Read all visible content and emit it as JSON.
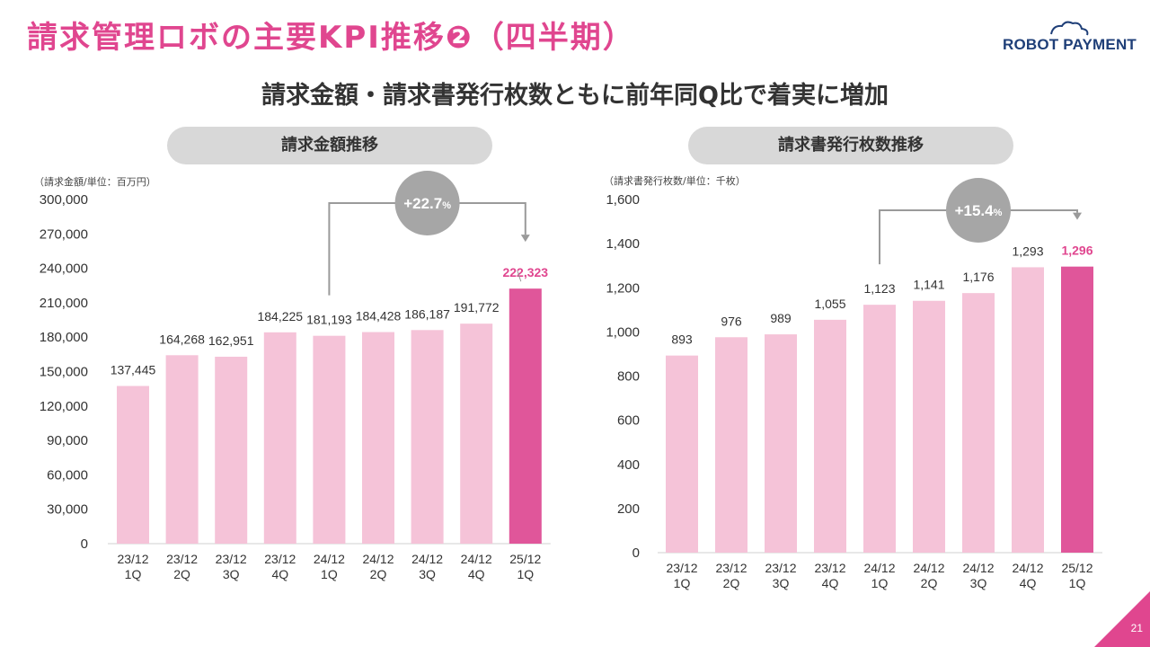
{
  "header": {
    "title": "請求管理ロボの主要KPI推移❷（四半期）",
    "logo_text": "ROBOT PAYMENT",
    "subtitle": "請求金額・請求書発行枚数ともに前年同Q比で着実に増加"
  },
  "page_number": "21",
  "colors": {
    "accent": "#e0468f",
    "bar_light": "#f5c3d8",
    "bar_highlight": "#e0569a",
    "pill_bg": "#d8d8d8",
    "badge_bg": "#a6a6a6",
    "logo": "#1f3f78"
  },
  "chart_data": [
    {
      "type": "bar",
      "pill_label": "請求金額推移",
      "unit_note": "（請求金額/単位：百万円）",
      "categories": [
        [
          "23/12",
          "1Q"
        ],
        [
          "23/12",
          "2Q"
        ],
        [
          "23/12",
          "3Q"
        ],
        [
          "23/12",
          "4Q"
        ],
        [
          "24/12",
          "1Q"
        ],
        [
          "24/12",
          "2Q"
        ],
        [
          "24/12",
          "3Q"
        ],
        [
          "24/12",
          "4Q"
        ],
        [
          "25/12",
          "1Q"
        ]
      ],
      "values": [
        137445,
        164268,
        162951,
        184225,
        181193,
        184428,
        186187,
        191772,
        222323
      ],
      "value_labels": [
        "137,445",
        "164,268",
        "162,951",
        "184,225",
        "181,193",
        "184,428",
        "186,187",
        "191,772",
        "222,323"
      ],
      "y_ticks": [
        "0",
        "30,000",
        "60,000",
        "90,000",
        "120,000",
        "150,000",
        "180,000",
        "210,000",
        "240,000",
        "270,000",
        "300,000"
      ],
      "ylim": [
        0,
        300000
      ],
      "ytick_step": 30000,
      "highlight_index": 8,
      "growth": {
        "from_index": 4,
        "to_index": 8,
        "main": "+22.7",
        "suffix": "%"
      }
    },
    {
      "type": "bar",
      "pill_label": "請求書発行枚数推移",
      "unit_note": "（請求書発行枚数/単位：千枚）",
      "categories": [
        [
          "23/12",
          "1Q"
        ],
        [
          "23/12",
          "2Q"
        ],
        [
          "23/12",
          "3Q"
        ],
        [
          "23/12",
          "4Q"
        ],
        [
          "24/12",
          "1Q"
        ],
        [
          "24/12",
          "2Q"
        ],
        [
          "24/12",
          "3Q"
        ],
        [
          "24/12",
          "4Q"
        ],
        [
          "25/12",
          "1Q"
        ]
      ],
      "values": [
        893,
        976,
        989,
        1055,
        1123,
        1141,
        1176,
        1293,
        1296
      ],
      "value_labels": [
        "893",
        "976",
        "989",
        "1,055",
        "1,123",
        "1,141",
        "1,176",
        "1,293",
        "1,296"
      ],
      "y_ticks": [
        "0",
        "200",
        "400",
        "600",
        "800",
        "1,000",
        "1,200",
        "1,400",
        "1,600"
      ],
      "ylim": [
        0,
        1600
      ],
      "ytick_step": 200,
      "highlight_index": 8,
      "growth": {
        "from_index": 4,
        "to_index": 8,
        "main": "+15.4",
        "suffix": "%"
      }
    }
  ]
}
